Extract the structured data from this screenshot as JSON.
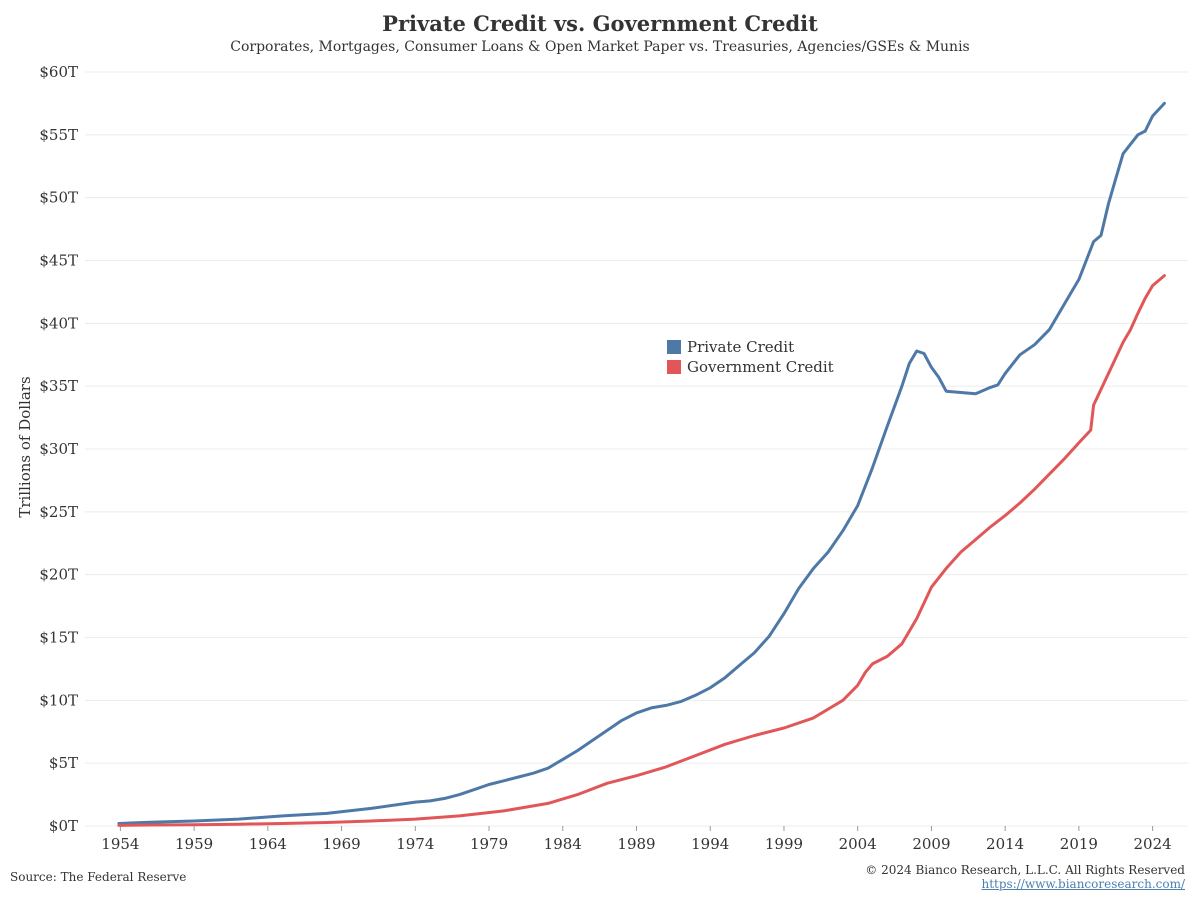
{
  "chart_data": {
    "type": "line",
    "title": "Private Credit vs. Government Credit",
    "subtitle": "Corporates, Mortgages, Consumer Loans & Open Market Paper vs. Treasuries, Agencies/GSEs & Munis",
    "ylabel": "Trillions of Dollars",
    "xlabel": "",
    "ylim": [
      0,
      60
    ],
    "xlim": [
      1951.6,
      2026.4
    ],
    "y_ticks": [
      0,
      5,
      10,
      15,
      20,
      25,
      30,
      35,
      40,
      45,
      50,
      55,
      60
    ],
    "y_tick_labels": [
      "$0T",
      "$5T",
      "$10T",
      "$15T",
      "$20T",
      "$25T",
      "$30T",
      "$35T",
      "$40T",
      "$45T",
      "$50T",
      "$55T",
      "$60T"
    ],
    "x_ticks": [
      1954,
      1959,
      1964,
      1969,
      1974,
      1979,
      1984,
      1989,
      1994,
      1999,
      2004,
      2009,
      2014,
      2019,
      2024
    ],
    "x_tick_labels": [
      "1954",
      "1959",
      "1964",
      "1969",
      "1974",
      "1979",
      "1984",
      "1989",
      "1994",
      "1999",
      "2004",
      "2009",
      "2014",
      "2019",
      "2024"
    ],
    "grid": true,
    "legend_position": "center",
    "series": [
      {
        "name": "Private Credit",
        "color": "#4e79a7",
        "x": [
          1953.9,
          1956,
          1959,
          1962,
          1965,
          1968,
          1971,
          1974,
          1975,
          1976,
          1977,
          1978,
          1979,
          1980,
          1981,
          1982,
          1983,
          1984,
          1985,
          1986,
          1987,
          1988,
          1989,
          1990,
          1991,
          1992,
          1993,
          1994,
          1995,
          1996,
          1997,
          1998,
          1999,
          2000,
          2001,
          2002,
          2003,
          2004,
          2005,
          2006,
          2007,
          2007.5,
          2008,
          2008.5,
          2009,
          2009.5,
          2010,
          2011,
          2012,
          2013,
          2013.5,
          2014,
          2015,
          2016,
          2017,
          2018,
          2019,
          2020,
          2020.5,
          2021,
          2021.5,
          2022,
          2023,
          2023.5,
          2024,
          2024.8
        ],
        "y": [
          0.2,
          0.3,
          0.4,
          0.55,
          0.8,
          1.0,
          1.4,
          1.9,
          2.0,
          2.2,
          2.5,
          2.9,
          3.3,
          3.6,
          3.9,
          4.2,
          4.6,
          5.3,
          6.0,
          6.8,
          7.6,
          8.4,
          9.0,
          9.4,
          9.6,
          9.9,
          10.4,
          11.0,
          11.8,
          12.8,
          13.8,
          15.1,
          16.9,
          18.9,
          20.5,
          21.8,
          23.5,
          25.5,
          28.5,
          31.8,
          35.0,
          36.8,
          37.8,
          37.6,
          36.5,
          35.7,
          34.6,
          34.5,
          34.4,
          34.9,
          35.1,
          36.0,
          37.5,
          38.3,
          39.5,
          41.5,
          43.5,
          46.5,
          47.0,
          49.5,
          51.5,
          53.5,
          55.0,
          55.3,
          56.5,
          57.5
        ]
      },
      {
        "name": "Government Credit",
        "color": "#e15759",
        "x": [
          1953.9,
          1956,
          1959,
          1962,
          1965,
          1968,
          1971,
          1974,
          1977,
          1980,
          1983,
          1985,
          1987,
          1989,
          1991,
          1993,
          1995,
          1997,
          1999,
          2001,
          2003,
          2004,
          2004.5,
          2005,
          2006,
          2007,
          2008,
          2009,
          2010,
          2011,
          2012,
          2013,
          2014,
          2015,
          2016,
          2017,
          2018,
          2019,
          2019.8,
          2020,
          2020.2,
          2021,
          2022,
          2022.5,
          2023,
          2023.5,
          2024,
          2024.8
        ],
        "y": [
          0.05,
          0.08,
          0.1,
          0.14,
          0.2,
          0.28,
          0.4,
          0.55,
          0.8,
          1.2,
          1.8,
          2.5,
          3.4,
          4.0,
          4.7,
          5.6,
          6.5,
          7.2,
          7.8,
          8.6,
          10.0,
          11.2,
          12.2,
          12.9,
          13.5,
          14.5,
          16.5,
          19.0,
          20.5,
          21.8,
          22.8,
          23.8,
          24.7,
          25.7,
          26.8,
          28.0,
          29.2,
          30.5,
          31.5,
          33.5,
          34.0,
          36.0,
          38.5,
          39.5,
          40.8,
          42.0,
          43.0,
          43.8
        ]
      }
    ]
  },
  "footer": {
    "source": "Source: The Federal Reserve",
    "copyright": "© 2024 Bianco Research, L.L.C. All Rights Reserved",
    "link": "https://www.biancoresearch.com/"
  }
}
